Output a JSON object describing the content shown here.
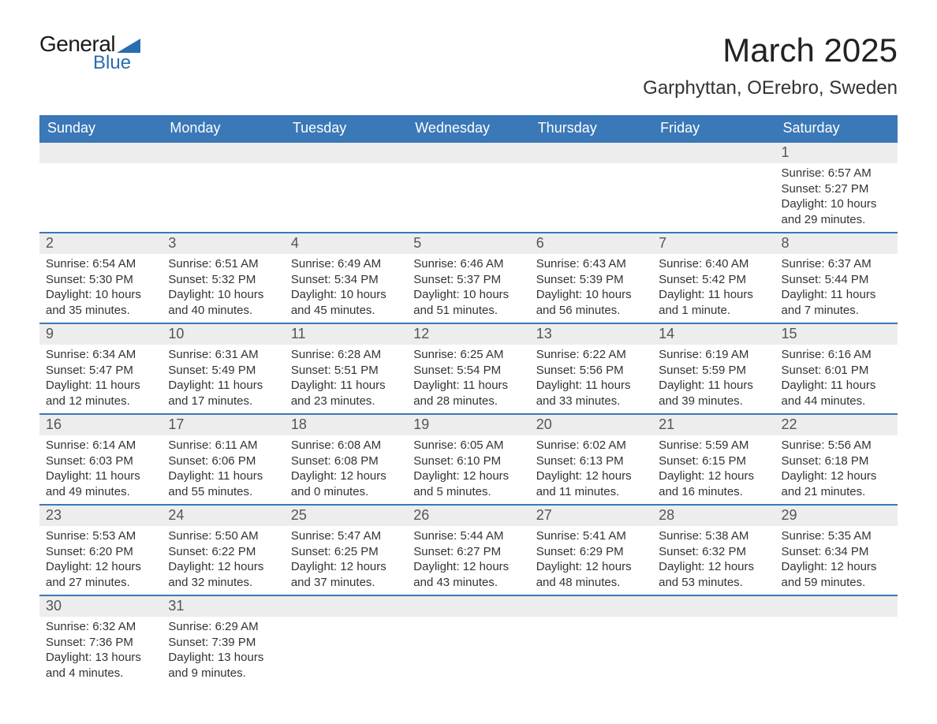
{
  "logo": {
    "text_general": "General",
    "text_blue": "Blue",
    "icon_color": "#2a6cb0"
  },
  "title": "March 2025",
  "location": "Garphyttan, OErebro, Sweden",
  "colors": {
    "header_bg": "#3a78b8",
    "header_text": "#ffffff",
    "daynum_bg": "#ededed",
    "daynum_text": "#555555",
    "body_text": "#333333",
    "row_border": "#3a78b8"
  },
  "weekdays": [
    "Sunday",
    "Monday",
    "Tuesday",
    "Wednesday",
    "Thursday",
    "Friday",
    "Saturday"
  ],
  "weeks": [
    [
      null,
      null,
      null,
      null,
      null,
      null,
      {
        "n": "1",
        "sunrise": "6:57 AM",
        "sunset": "5:27 PM",
        "daylight": "10 hours and 29 minutes."
      }
    ],
    [
      {
        "n": "2",
        "sunrise": "6:54 AM",
        "sunset": "5:30 PM",
        "daylight": "10 hours and 35 minutes."
      },
      {
        "n": "3",
        "sunrise": "6:51 AM",
        "sunset": "5:32 PM",
        "daylight": "10 hours and 40 minutes."
      },
      {
        "n": "4",
        "sunrise": "6:49 AM",
        "sunset": "5:34 PM",
        "daylight": "10 hours and 45 minutes."
      },
      {
        "n": "5",
        "sunrise": "6:46 AM",
        "sunset": "5:37 PM",
        "daylight": "10 hours and 51 minutes."
      },
      {
        "n": "6",
        "sunrise": "6:43 AM",
        "sunset": "5:39 PM",
        "daylight": "10 hours and 56 minutes."
      },
      {
        "n": "7",
        "sunrise": "6:40 AM",
        "sunset": "5:42 PM",
        "daylight": "11 hours and 1 minute."
      },
      {
        "n": "8",
        "sunrise": "6:37 AM",
        "sunset": "5:44 PM",
        "daylight": "11 hours and 7 minutes."
      }
    ],
    [
      {
        "n": "9",
        "sunrise": "6:34 AM",
        "sunset": "5:47 PM",
        "daylight": "11 hours and 12 minutes."
      },
      {
        "n": "10",
        "sunrise": "6:31 AM",
        "sunset": "5:49 PM",
        "daylight": "11 hours and 17 minutes."
      },
      {
        "n": "11",
        "sunrise": "6:28 AM",
        "sunset": "5:51 PM",
        "daylight": "11 hours and 23 minutes."
      },
      {
        "n": "12",
        "sunrise": "6:25 AM",
        "sunset": "5:54 PM",
        "daylight": "11 hours and 28 minutes."
      },
      {
        "n": "13",
        "sunrise": "6:22 AM",
        "sunset": "5:56 PM",
        "daylight": "11 hours and 33 minutes."
      },
      {
        "n": "14",
        "sunrise": "6:19 AM",
        "sunset": "5:59 PM",
        "daylight": "11 hours and 39 minutes."
      },
      {
        "n": "15",
        "sunrise": "6:16 AM",
        "sunset": "6:01 PM",
        "daylight": "11 hours and 44 minutes."
      }
    ],
    [
      {
        "n": "16",
        "sunrise": "6:14 AM",
        "sunset": "6:03 PM",
        "daylight": "11 hours and 49 minutes."
      },
      {
        "n": "17",
        "sunrise": "6:11 AM",
        "sunset": "6:06 PM",
        "daylight": "11 hours and 55 minutes."
      },
      {
        "n": "18",
        "sunrise": "6:08 AM",
        "sunset": "6:08 PM",
        "daylight": "12 hours and 0 minutes."
      },
      {
        "n": "19",
        "sunrise": "6:05 AM",
        "sunset": "6:10 PM",
        "daylight": "12 hours and 5 minutes."
      },
      {
        "n": "20",
        "sunrise": "6:02 AM",
        "sunset": "6:13 PM",
        "daylight": "12 hours and 11 minutes."
      },
      {
        "n": "21",
        "sunrise": "5:59 AM",
        "sunset": "6:15 PM",
        "daylight": "12 hours and 16 minutes."
      },
      {
        "n": "22",
        "sunrise": "5:56 AM",
        "sunset": "6:18 PM",
        "daylight": "12 hours and 21 minutes."
      }
    ],
    [
      {
        "n": "23",
        "sunrise": "5:53 AM",
        "sunset": "6:20 PM",
        "daylight": "12 hours and 27 minutes."
      },
      {
        "n": "24",
        "sunrise": "5:50 AM",
        "sunset": "6:22 PM",
        "daylight": "12 hours and 32 minutes."
      },
      {
        "n": "25",
        "sunrise": "5:47 AM",
        "sunset": "6:25 PM",
        "daylight": "12 hours and 37 minutes."
      },
      {
        "n": "26",
        "sunrise": "5:44 AM",
        "sunset": "6:27 PM",
        "daylight": "12 hours and 43 minutes."
      },
      {
        "n": "27",
        "sunrise": "5:41 AM",
        "sunset": "6:29 PM",
        "daylight": "12 hours and 48 minutes."
      },
      {
        "n": "28",
        "sunrise": "5:38 AM",
        "sunset": "6:32 PM",
        "daylight": "12 hours and 53 minutes."
      },
      {
        "n": "29",
        "sunrise": "5:35 AM",
        "sunset": "6:34 PM",
        "daylight": "12 hours and 59 minutes."
      }
    ],
    [
      {
        "n": "30",
        "sunrise": "6:32 AM",
        "sunset": "7:36 PM",
        "daylight": "13 hours and 4 minutes."
      },
      {
        "n": "31",
        "sunrise": "6:29 AM",
        "sunset": "7:39 PM",
        "daylight": "13 hours and 9 minutes."
      },
      null,
      null,
      null,
      null,
      null
    ]
  ],
  "labels": {
    "sunrise": "Sunrise: ",
    "sunset": "Sunset: ",
    "daylight": "Daylight: "
  }
}
